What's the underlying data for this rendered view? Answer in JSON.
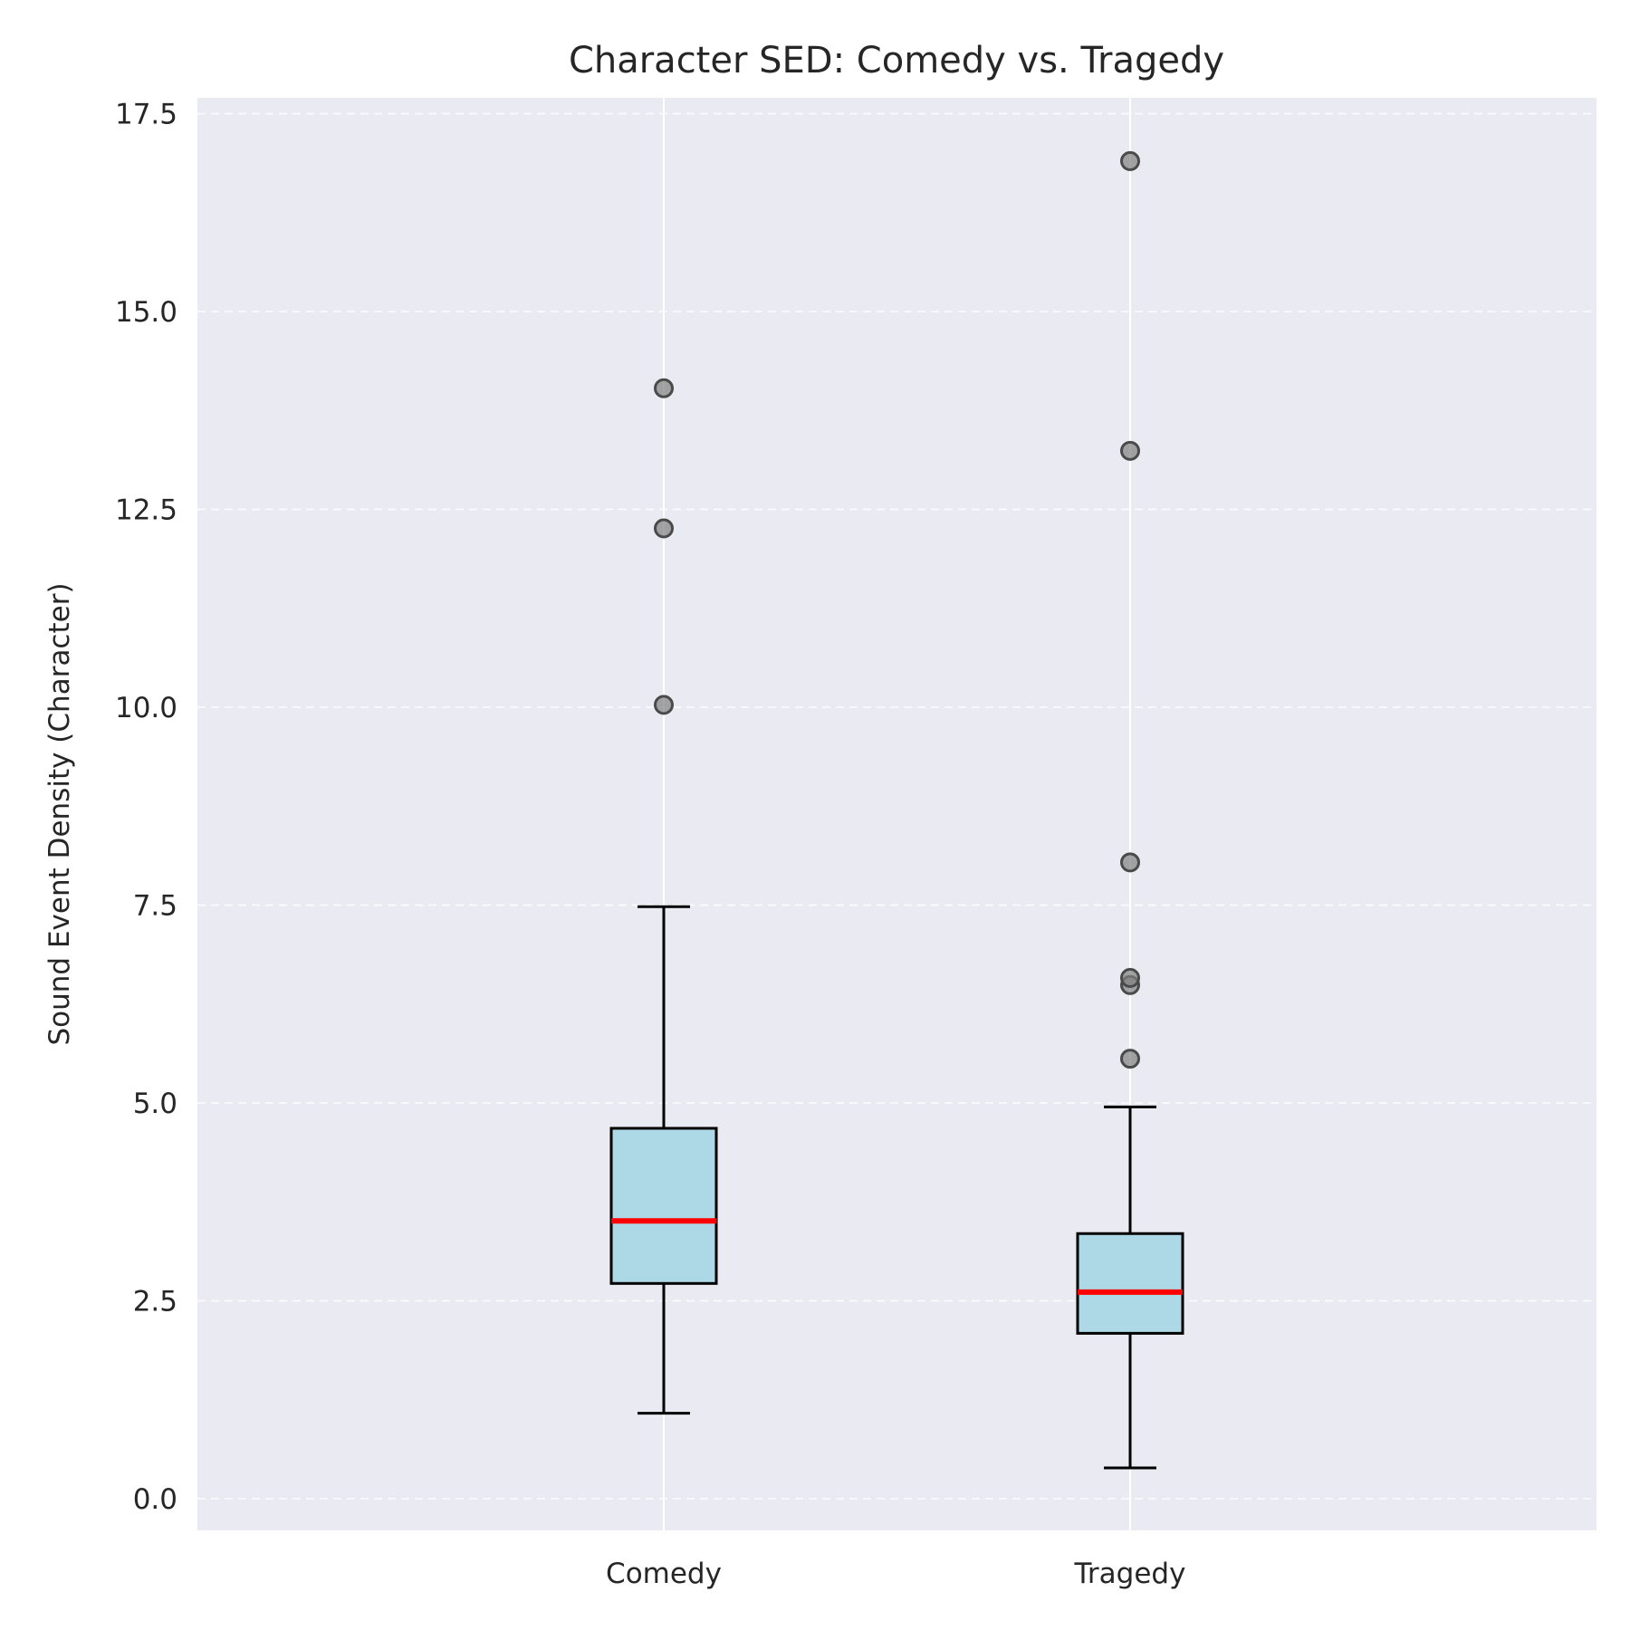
{
  "chart_data": {
    "type": "box",
    "title": "Character SED: Comedy vs. Tragedy",
    "xlabel": "",
    "ylabel": "Sound Event Density (Character)",
    "ylim": [
      -0.4,
      17.7
    ],
    "yticks": [
      0.0,
      2.5,
      5.0,
      7.5,
      10.0,
      12.5,
      15.0,
      17.5
    ],
    "ytick_labels": [
      "0.0",
      "2.5",
      "5.0",
      "7.5",
      "10.0",
      "12.5",
      "15.0",
      "17.5"
    ],
    "grid": true,
    "categories": [
      "Comedy",
      "Tragedy"
    ],
    "boxes": [
      {
        "category": "Comedy",
        "whislo": 1.08,
        "q1": 2.72,
        "med": 3.51,
        "q3": 4.68,
        "whishi": 7.48,
        "fliers": [
          10.03,
          12.26,
          14.03
        ]
      },
      {
        "category": "Tragedy",
        "whislo": 0.39,
        "q1": 2.09,
        "med": 2.61,
        "q3": 3.35,
        "whishi": 4.95,
        "fliers": [
          5.56,
          6.49,
          6.58,
          8.04,
          13.24,
          16.9
        ]
      }
    ]
  },
  "colors": {
    "plot_background": "#eaeaf2",
    "box_fill": "#add8e6",
    "box_edge": "#000000",
    "median": "#ff0000",
    "flier": "#808080"
  }
}
